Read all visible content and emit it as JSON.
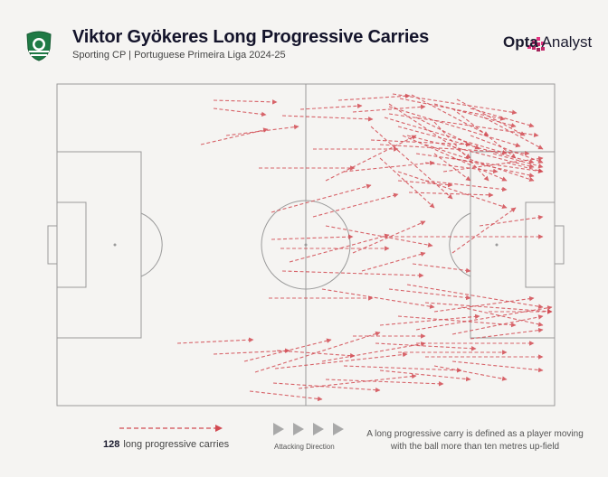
{
  "header": {
    "title": "Viktor Gyökeres Long Progressive Carries",
    "subtitle": "Sporting CP | Portuguese Primeira Liga 2024-25",
    "brand": {
      "bold": "Opta",
      "regular": " Analyst"
    }
  },
  "legend": {
    "count": "128",
    "count_label": "long progressive carries",
    "direction_label": "Attacking Direction",
    "definition": "A long progressive carry is defined as a player moving with the ball more than ten metres up-field"
  },
  "colors": {
    "arrow": "#d24a52",
    "pitch_line": "#9a9a9a",
    "crest_green": "#1f7a45"
  },
  "icons": [
    "sporting-crest-icon",
    "opta-logo-icon",
    "arrow-legend-icon",
    "direction-triangle-icon"
  ]
}
